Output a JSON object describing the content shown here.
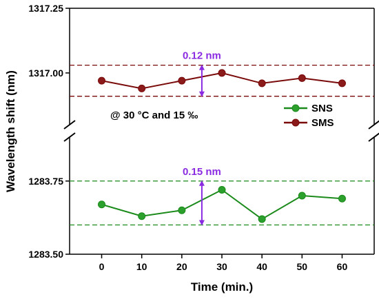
{
  "chart_data": {
    "type": "line",
    "xlabel": "Time (min.)",
    "ylabel": "Wavelength shift (nm)",
    "x_ticks": [
      "0",
      "10",
      "20",
      "30",
      "40",
      "50",
      "60"
    ],
    "xlim": [
      -8,
      68
    ],
    "axis_breaks": true,
    "upper_panel": {
      "ylim": [
        1316.8,
        1317.25
      ],
      "y_ticks": [
        "1317.25",
        "1317.00"
      ]
    },
    "lower_panel": {
      "ylim": [
        1283.5,
        1283.9
      ],
      "y_ticks": [
        "1283.75",
        "1283.50"
      ]
    },
    "series": [
      {
        "name": "SNS",
        "panel": "lower",
        "color": "#1a8a1a",
        "marker_color": "#2ca02c",
        "x": [
          0,
          10,
          20,
          30,
          40,
          50,
          60
        ],
        "y": [
          1283.67,
          1283.63,
          1283.65,
          1283.72,
          1283.62,
          1283.7,
          1283.69
        ],
        "band": [
          1283.6,
          1283.75
        ],
        "band_label": "0.15 nm"
      },
      {
        "name": "SMS",
        "panel": "upper",
        "color": "#7a0a0a",
        "marker_color": "#8b1a1a",
        "x": [
          0,
          10,
          20,
          30,
          40,
          50,
          60
        ],
        "y": [
          1316.97,
          1316.94,
          1316.97,
          1317.0,
          1316.96,
          1316.98,
          1316.96
        ],
        "band": [
          1316.91,
          1317.03
        ],
        "band_label": "0.12 nm"
      }
    ],
    "annotation": "@ 30 °C and 15 ‰",
    "annotation_arrow_color": "#8a2be2",
    "legend_placement": "right",
    "grid": false
  }
}
